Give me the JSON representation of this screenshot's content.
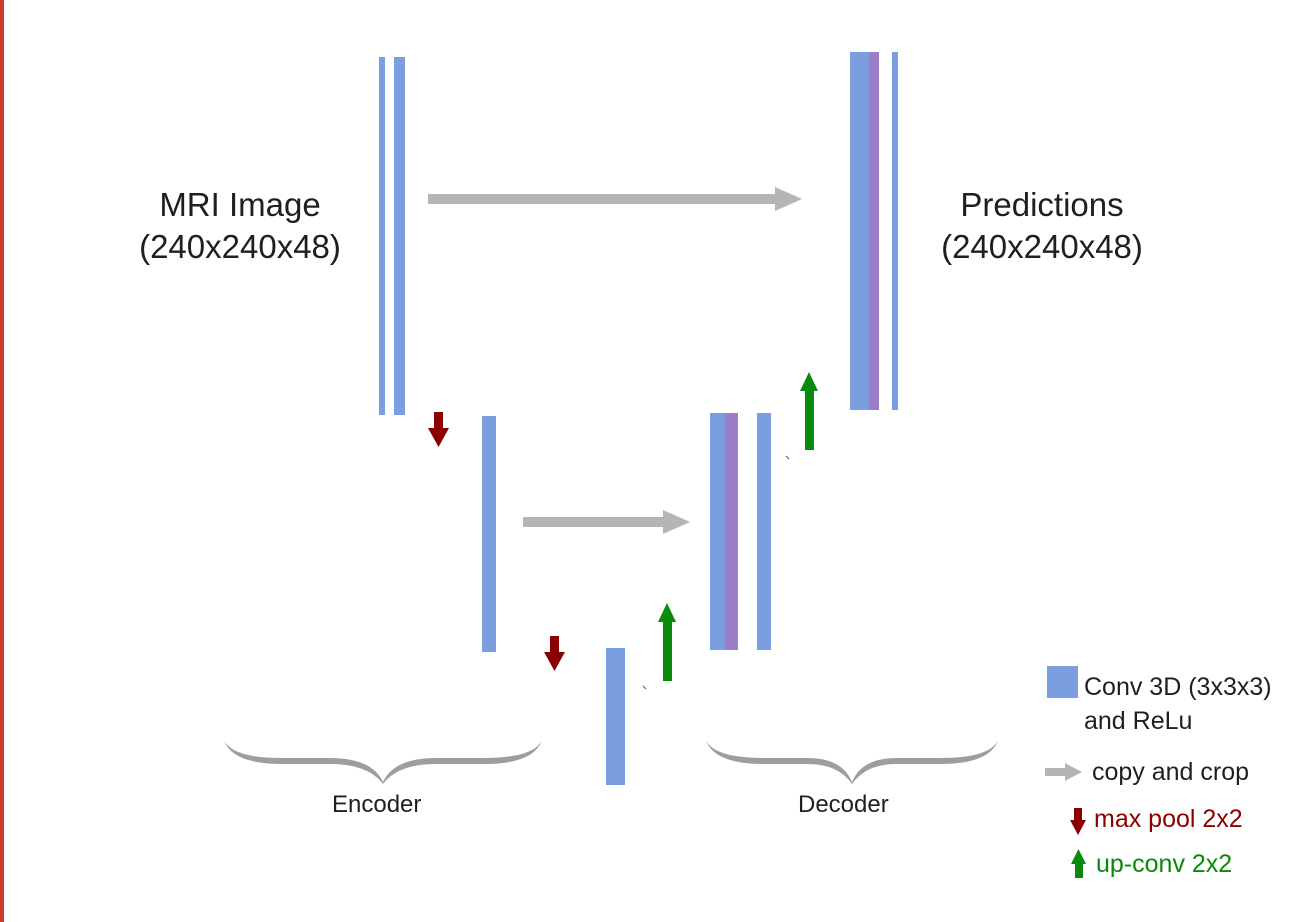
{
  "colors": {
    "conv": "#7b9edf",
    "concat": "#9b7dc8",
    "copy_arrow": "#b5b5b5",
    "maxpool": "#8b0000",
    "upconv": "#0a8a0a",
    "brace": "#9e9e9e",
    "border": "#cc3a2b"
  },
  "input_label": {
    "line1": "MRI Image",
    "line2": "(240x240x48)"
  },
  "output_label": {
    "line1": "Predictions",
    "line2": "(240x240x48)"
  },
  "encoder_label": "Encoder",
  "decoder_label": "Decoder",
  "legend": {
    "conv_line1": "Conv 3D (3x3x3)",
    "conv_line2": "and ReLu",
    "copy": "copy and crop",
    "maxpool": "max pool 2x2",
    "upconv": "up-conv 2x2"
  }
}
